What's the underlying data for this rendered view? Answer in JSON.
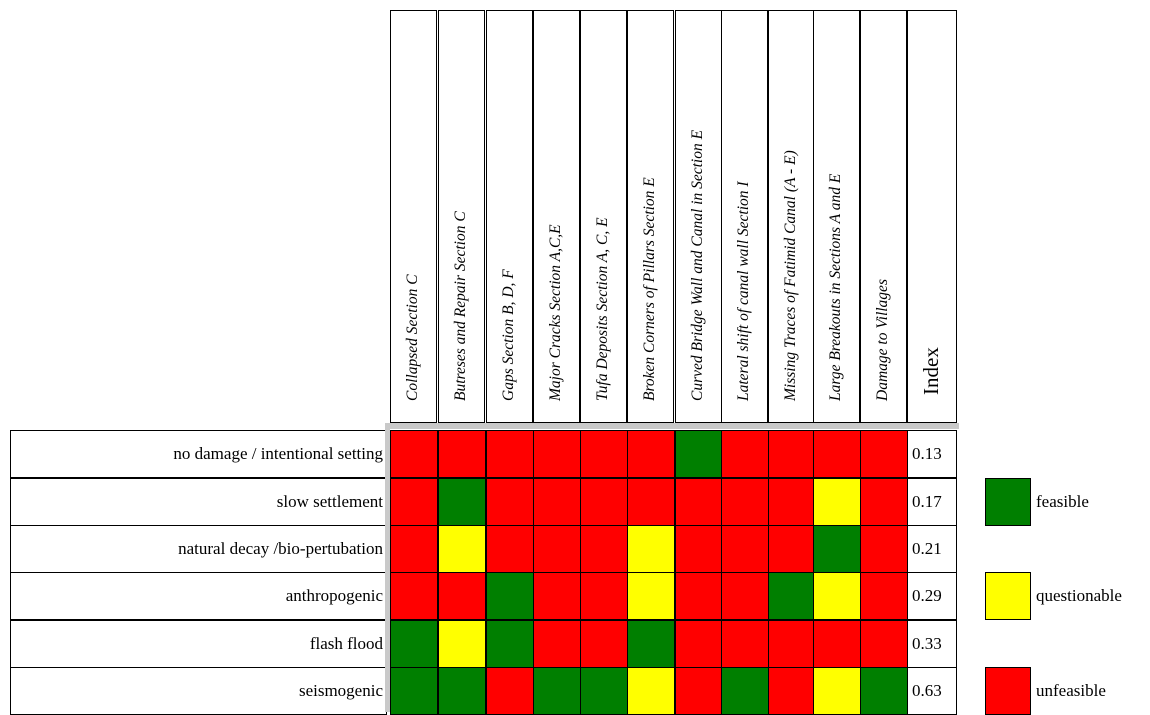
{
  "chart_data": {
    "type": "heatmap",
    "columns": [
      "Collapsed Section C",
      "Butreses and Repair Section C",
      "Gaps Section B, D, F",
      "Major Cracks Section A,C,E",
      "Tufa Deposits Section A, C, E",
      "Broken Corners of Pillars Section E",
      "Curved Bridge Wall and Canal in Section E",
      "Lateral shift of canal wall Section I",
      "Missing Traces of Fatimid Canal (A - E)",
      "Large Breakouts in Sections A and E",
      "Damage to Villages"
    ],
    "index_header": "Index",
    "rows": [
      {
        "label": "no damage / intentional setting",
        "index": "0.13",
        "values": [
          "unfeasible",
          "unfeasible",
          "unfeasible",
          "unfeasible",
          "unfeasible",
          "unfeasible",
          "feasible",
          "unfeasible",
          "unfeasible",
          "unfeasible",
          "unfeasible"
        ]
      },
      {
        "label": "slow settlement",
        "index": "0.17",
        "values": [
          "unfeasible",
          "feasible",
          "unfeasible",
          "unfeasible",
          "unfeasible",
          "unfeasible",
          "unfeasible",
          "unfeasible",
          "unfeasible",
          "questionable",
          "unfeasible"
        ]
      },
      {
        "label": "natural decay /bio-pertubation",
        "index": "0.21",
        "values": [
          "unfeasible",
          "questionable",
          "unfeasible",
          "unfeasible",
          "unfeasible",
          "questionable",
          "unfeasible",
          "unfeasible",
          "unfeasible",
          "feasible",
          "unfeasible"
        ]
      },
      {
        "label": "anthropogenic",
        "index": "0.29",
        "values": [
          "unfeasible",
          "unfeasible",
          "feasible",
          "unfeasible",
          "unfeasible",
          "questionable",
          "unfeasible",
          "unfeasible",
          "feasible",
          "questionable",
          "unfeasible"
        ]
      },
      {
        "label": "flash flood",
        "index": "0.33",
        "values": [
          "feasible",
          "questionable",
          "feasible",
          "unfeasible",
          "unfeasible",
          "feasible",
          "unfeasible",
          "unfeasible",
          "unfeasible",
          "unfeasible",
          "unfeasible"
        ]
      },
      {
        "label": "seismogenic",
        "index": "0.63",
        "values": [
          "feasible",
          "feasible",
          "unfeasible",
          "feasible",
          "feasible",
          "questionable",
          "unfeasible",
          "feasible",
          "unfeasible",
          "questionable",
          "feasible"
        ]
      }
    ],
    "legend": [
      {
        "key": "feasible",
        "label": "feasible",
        "color": "#007f00"
      },
      {
        "key": "questionable",
        "label": "questionable",
        "color": "#ffff00"
      },
      {
        "key": "unfeasible",
        "label": "unfeasible",
        "color": "#ff0000"
      }
    ]
  }
}
